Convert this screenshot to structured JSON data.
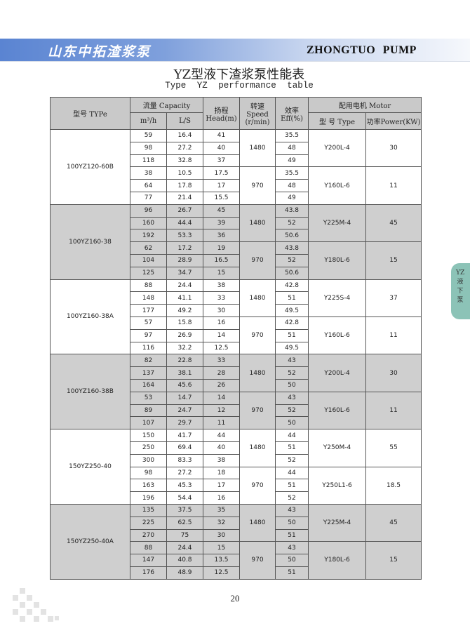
{
  "header": {
    "brand_cn": "山东中拓渣浆泵",
    "brand_en": "ZHONGTUO PUMP",
    "banner_color": "#5a84d2"
  },
  "title": "YZ型液下渣浆泵性能表",
  "subtitle": "Type YZ performance table",
  "side_tab": {
    "text": "YZ液下泵",
    "color": "#8cc3b7"
  },
  "table": {
    "headers": {
      "type": "型号 TYPe",
      "capacity": "流量 Capacity",
      "m3h": "m³/h",
      "ls": "L/S",
      "head": "扬程 Head(m)",
      "speed": "转速Speed (r/min)",
      "eff": "效率 Eff(%)",
      "motor": "配用电机 Motor",
      "motor_type": "型 号 Type",
      "power": "功率Power(KW)"
    },
    "groups": [
      {
        "model": "100YZ120-60B",
        "shaded": false,
        "speeds": [
          {
            "speed": "1480",
            "motor": "Y200L-4",
            "power": "30",
            "rows": [
              [
                "59",
                "16.4",
                "41",
                "35.5"
              ],
              [
                "98",
                "27.2",
                "40",
                "48"
              ],
              [
                "118",
                "32.8",
                "37",
                "49"
              ]
            ]
          },
          {
            "speed": "970",
            "motor": "Y160L-6",
            "power": "11",
            "rows": [
              [
                "38",
                "10.5",
                "17.5",
                "35.5"
              ],
              [
                "64",
                "17.8",
                "17",
                "48"
              ],
              [
                "77",
                "21.4",
                "15.5",
                "49"
              ]
            ]
          }
        ]
      },
      {
        "model": "100YZ160-38",
        "shaded": true,
        "speeds": [
          {
            "speed": "1480",
            "motor": "Y225M-4",
            "power": "45",
            "rows": [
              [
                "96",
                "26.7",
                "45",
                "43.8"
              ],
              [
                "160",
                "44.4",
                "39",
                "52"
              ],
              [
                "192",
                "53.3",
                "36",
                "50.6"
              ]
            ]
          },
          {
            "speed": "970",
            "motor": "Y180L-6",
            "power": "15",
            "rows": [
              [
                "62",
                "17.2",
                "19",
                "43.8"
              ],
              [
                "104",
                "28.9",
                "16.5",
                "52"
              ],
              [
                "125",
                "34.7",
                "15",
                "50.6"
              ]
            ]
          }
        ]
      },
      {
        "model": "100YZ160-38A",
        "shaded": false,
        "speeds": [
          {
            "speed": "1480",
            "motor": "Y225S-4",
            "power": "37",
            "rows": [
              [
                "88",
                "24.4",
                "38",
                "42.8"
              ],
              [
                "148",
                "41.1",
                "33",
                "51"
              ],
              [
                "177",
                "49.2",
                "30",
                "49.5"
              ]
            ]
          },
          {
            "speed": "970",
            "motor": "Y160L-6",
            "power": "11",
            "rows": [
              [
                "57",
                "15.8",
                "16",
                "42.8"
              ],
              [
                "97",
                "26.9",
                "14",
                "51"
              ],
              [
                "116",
                "32.2",
                "12.5",
                "49.5"
              ]
            ]
          }
        ]
      },
      {
        "model": "100YZ160-38B",
        "shaded": true,
        "speeds": [
          {
            "speed": "1480",
            "motor": "Y200L-4",
            "power": "30",
            "rows": [
              [
                "82",
                "22.8",
                "33",
                "43"
              ],
              [
                "137",
                "38.1",
                "28",
                "52"
              ],
              [
                "164",
                "45.6",
                "26",
                "50"
              ]
            ]
          },
          {
            "speed": "970",
            "motor": "Y160L-6",
            "power": "11",
            "rows": [
              [
                "53",
                "14.7",
                "14",
                "43"
              ],
              [
                "89",
                "24.7",
                "12",
                "52"
              ],
              [
                "107",
                "29.7",
                "11",
                "50"
              ]
            ]
          }
        ]
      },
      {
        "model": "150YZ250-40",
        "shaded": false,
        "speeds": [
          {
            "speed": "1480",
            "motor": "Y250M-4",
            "power": "55",
            "rows": [
              [
                "150",
                "41.7",
                "44",
                "44"
              ],
              [
                "250",
                "69.4",
                "40",
                "51"
              ],
              [
                "300",
                "83.3",
                "38",
                "52"
              ]
            ]
          },
          {
            "speed": "970",
            "motor": "Y250L1-6",
            "power": "18.5",
            "rows": [
              [
                "98",
                "27.2",
                "18",
                "44"
              ],
              [
                "163",
                "45.3",
                "17",
                "51"
              ],
              [
                "196",
                "54.4",
                "16",
                "52"
              ]
            ]
          }
        ]
      },
      {
        "model": "150YZ250-40A",
        "shaded": true,
        "speeds": [
          {
            "speed": "1480",
            "motor": "Y225M-4",
            "power": "45",
            "rows": [
              [
                "135",
                "37.5",
                "35",
                "43"
              ],
              [
                "225",
                "62.5",
                "32",
                "50"
              ],
              [
                "270",
                "75",
                "30",
                "51"
              ]
            ]
          },
          {
            "speed": "970",
            "motor": "Y180L-6",
            "power": "15",
            "rows": [
              [
                "88",
                "24.4",
                "15",
                "43"
              ],
              [
                "147",
                "40.8",
                "13.5",
                "50"
              ],
              [
                "176",
                "48.9",
                "12.5",
                "51"
              ]
            ]
          }
        ]
      }
    ]
  },
  "page_number": "20"
}
